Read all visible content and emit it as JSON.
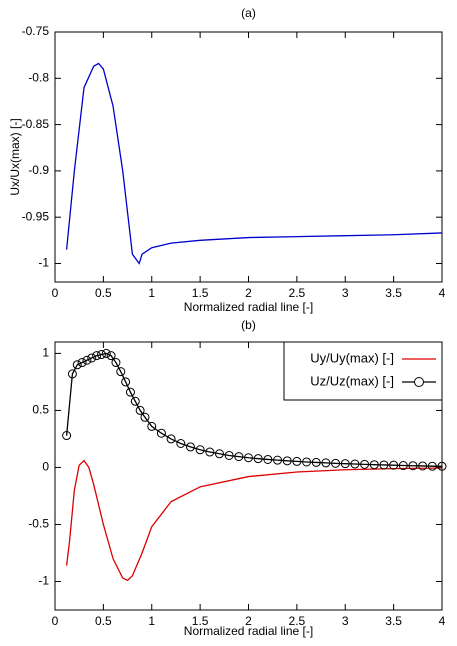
{
  "chart_data": [
    {
      "type": "line",
      "title": "(a)",
      "xlabel": "Normalized radial line [-]",
      "ylabel": "Ux/Ux(max) [-]",
      "xlim": [
        0,
        4
      ],
      "xticks": [
        0,
        0.5,
        1,
        1.5,
        2,
        2.5,
        3,
        3.5,
        4
      ],
      "ylim": [
        -1.02,
        -0.75
      ],
      "yticks": [
        -0.75,
        -0.8,
        -0.85,
        -0.9,
        -0.95,
        -1
      ],
      "series": [
        {
          "color": "#0000cc",
          "x": [
            0.12,
            0.2,
            0.3,
            0.4,
            0.45,
            0.5,
            0.6,
            0.7,
            0.8,
            0.87,
            0.9,
            1.0,
            1.2,
            1.5,
            2,
            2.5,
            3,
            3.5,
            4
          ],
          "values": [
            -0.985,
            -0.9,
            -0.81,
            -0.787,
            -0.784,
            -0.79,
            -0.83,
            -0.9,
            -0.99,
            -1.0,
            -0.99,
            -0.983,
            -0.978,
            -0.975,
            -0.972,
            -0.971,
            -0.97,
            -0.969,
            -0.967
          ]
        }
      ]
    },
    {
      "type": "line",
      "title": "(b)",
      "xlabel": "Normalized radial line [-]",
      "xlim": [
        0,
        4
      ],
      "xticks": [
        0,
        0.5,
        1,
        1.5,
        2,
        2.5,
        3,
        3.5,
        4
      ],
      "ylim": [
        -1.25,
        1.1
      ],
      "yticks": [
        1,
        0.5,
        0,
        -0.5,
        -1
      ],
      "legend": "upper right",
      "series": [
        {
          "name": "Uy/Uy(max) [-]",
          "color": "#dd0000",
          "x": [
            0.12,
            0.15,
            0.2,
            0.25,
            0.3,
            0.35,
            0.4,
            0.5,
            0.6,
            0.7,
            0.75,
            0.8,
            0.9,
            1.0,
            1.2,
            1.5,
            2,
            2.5,
            3,
            3.5,
            4
          ],
          "values": [
            -0.86,
            -0.65,
            -0.2,
            0.02,
            0.06,
            0.0,
            -0.15,
            -0.5,
            -0.8,
            -0.97,
            -0.99,
            -0.95,
            -0.75,
            -0.52,
            -0.3,
            -0.17,
            -0.08,
            -0.04,
            -0.02,
            -0.01,
            -0.005
          ]
        },
        {
          "name": "Uz/Uz(max) [-]",
          "color": "#000000",
          "marker": "circle",
          "x": [
            0.12,
            0.18,
            0.23,
            0.28,
            0.33,
            0.38,
            0.43,
            0.48,
            0.53,
            0.58,
            0.63,
            0.68,
            0.73,
            0.78,
            0.83,
            0.88,
            0.93,
            1.0,
            1.1,
            1.2,
            1.3,
            1.4,
            1.5,
            1.6,
            1.7,
            1.8,
            1.9,
            2.0,
            2.1,
            2.2,
            2.3,
            2.4,
            2.5,
            2.6,
            2.7,
            2.8,
            2.9,
            3.0,
            3.1,
            3.2,
            3.3,
            3.4,
            3.5,
            3.6,
            3.7,
            3.8,
            3.9,
            4.0
          ],
          "values": [
            0.28,
            0.82,
            0.9,
            0.92,
            0.94,
            0.96,
            0.98,
            0.99,
            1.0,
            0.98,
            0.92,
            0.84,
            0.75,
            0.66,
            0.58,
            0.5,
            0.44,
            0.36,
            0.3,
            0.25,
            0.21,
            0.18,
            0.155,
            0.135,
            0.12,
            0.105,
            0.095,
            0.085,
            0.077,
            0.07,
            0.064,
            0.058,
            0.053,
            0.048,
            0.044,
            0.04,
            0.036,
            0.033,
            0.03,
            0.027,
            0.024,
            0.022,
            0.02,
            0.017,
            0.015,
            0.013,
            0.011,
            0.01
          ]
        }
      ]
    }
  ]
}
